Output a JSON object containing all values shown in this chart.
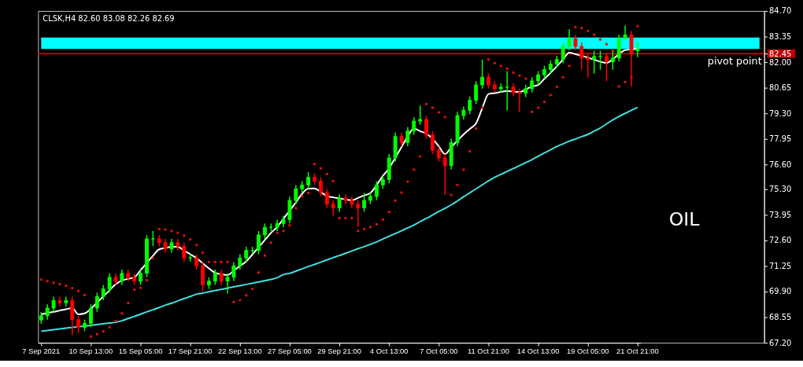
{
  "chart_data": {
    "type": "candlestick",
    "title": "CLSK,H4  82.60 83.08 82.26 82.69",
    "annotations": [
      "OIL"
    ],
    "categories": [
      "7 Sep 2021",
      null,
      null,
      null,
      null,
      null,
      null,
      null,
      "10 Sep 13:00",
      null,
      null,
      null,
      null,
      null,
      null,
      null,
      "15 Sep 05:00",
      null,
      null,
      null,
      null,
      null,
      null,
      null,
      "17 Sep 21:00",
      null,
      null,
      null,
      null,
      null,
      null,
      null,
      "22 Sep 13:00",
      null,
      null,
      null,
      null,
      null,
      null,
      null,
      "27 Sep 05:00",
      null,
      null,
      null,
      null,
      null,
      null,
      null,
      "29 Sep 21:00",
      null,
      null,
      null,
      null,
      null,
      null,
      null,
      "4 Oct 13:00",
      null,
      null,
      null,
      null,
      null,
      null,
      null,
      "7 Oct 05:00",
      null,
      null,
      null,
      null,
      null,
      null,
      null,
      "11 Oct 21:00",
      null,
      null,
      null,
      null,
      null,
      null,
      null,
      "14 Oct 13:00",
      null,
      null,
      null,
      null,
      null,
      null,
      null,
      "19 Oct 05:00",
      null,
      null,
      null,
      null,
      null,
      null,
      null,
      "21 Oct 21:00"
    ],
    "ylim": [
      67.2,
      84.7
    ],
    "yticks": [
      {
        "value": 67.2,
        "label": "67.20"
      },
      {
        "value": 68.55,
        "label": "68.55"
      },
      {
        "value": 69.9,
        "label": "69.90"
      },
      {
        "value": 71.25,
        "label": "71.25"
      },
      {
        "value": 72.6,
        "label": "72.60"
      },
      {
        "value": 73.95,
        "label": "73.95"
      },
      {
        "value": 75.3,
        "label": "75.30"
      },
      {
        "value": 76.6,
        "label": "76.60"
      },
      {
        "value": 77.95,
        "label": "77.95"
      },
      {
        "value": 79.3,
        "label": "79.30"
      },
      {
        "value": 80.65,
        "label": "80.65"
      },
      {
        "value": 82.0,
        "label": "82.00"
      },
      {
        "value": 82.45,
        "label": "82.45"
      },
      {
        "value": 83.35,
        "label": "83.35"
      },
      {
        "value": 84.7,
        "label": "84.70"
      }
    ],
    "grid": false,
    "bands": [
      {
        "axis": "y",
        "from": 82.7,
        "to": 83.3,
        "color": "#00ffff"
      }
    ],
    "ref_lines": [
      {
        "axis": "y",
        "value": 82.45,
        "label": "pivot point",
        "color": "#c00000"
      }
    ],
    "ohlc": [
      [
        68.4,
        68.82,
        68.2,
        68.62
      ],
      [
        68.62,
        69.23,
        68.42,
        69.03
      ],
      [
        69.03,
        69.63,
        68.83,
        69.43
      ],
      [
        69.43,
        69.63,
        69.11,
        69.31
      ],
      [
        69.31,
        69.63,
        69.11,
        69.43
      ],
      [
        69.43,
        69.63,
        67.6,
        68.42
      ],
      [
        68.42,
        68.62,
        67.7,
        68.01
      ],
      [
        68.01,
        68.42,
        67.81,
        68.22
      ],
      [
        68.22,
        69.23,
        68.02,
        69.03
      ],
      [
        69.03,
        69.84,
        68.83,
        69.64
      ],
      [
        69.64,
        70.24,
        69.44,
        70.04
      ],
      [
        70.04,
        70.85,
        69.84,
        70.65
      ],
      [
        70.65,
        70.85,
        70.25,
        70.45
      ],
      [
        70.45,
        71.06,
        70.25,
        70.86
      ],
      [
        70.86,
        71.06,
        70.45,
        70.65
      ],
      [
        70.65,
        70.85,
        70.25,
        70.45
      ],
      [
        70.45,
        71.06,
        70.25,
        70.86
      ],
      [
        70.86,
        72.88,
        70.66,
        72.68
      ],
      [
        72.68,
        73.1,
        72.3,
        72.68
      ],
      [
        72.68,
        72.88,
        72.28,
        72.48
      ],
      [
        72.48,
        72.68,
        71.95,
        72.15
      ],
      [
        72.15,
        72.68,
        71.95,
        72.48
      ],
      [
        72.48,
        72.68,
        72.08,
        72.28
      ],
      [
        72.28,
        72.48,
        71.47,
        71.67
      ],
      [
        71.67,
        71.87,
        71.47,
        71.67
      ],
      [
        71.67,
        71.87,
        71.06,
        71.26
      ],
      [
        71.26,
        71.46,
        69.9,
        70.25
      ],
      [
        70.25,
        70.65,
        70.05,
        70.45
      ],
      [
        70.45,
        71.06,
        70.25,
        70.86
      ],
      [
        70.86,
        71.06,
        70.25,
        70.45
      ],
      [
        70.45,
        70.85,
        69.8,
        70.65
      ],
      [
        70.65,
        71.46,
        70.45,
        71.26
      ],
      [
        71.26,
        71.87,
        71.06,
        71.67
      ],
      [
        71.67,
        72.27,
        71.47,
        72.07
      ],
      [
        72.07,
        72.27,
        71.87,
        72.07
      ],
      [
        72.07,
        73.09,
        71.87,
        72.89
      ],
      [
        72.89,
        73.49,
        72.69,
        73.29
      ],
      [
        73.29,
        73.49,
        73.09,
        73.29
      ],
      [
        73.29,
        73.69,
        73.09,
        73.49
      ],
      [
        73.49,
        73.9,
        73.29,
        73.7
      ],
      [
        73.7,
        74.91,
        73.5,
        74.71
      ],
      [
        74.71,
        75.52,
        74.51,
        75.32
      ],
      [
        75.32,
        75.72,
        75.12,
        75.52
      ],
      [
        75.52,
        76.2,
        75.32,
        75.93
      ],
      [
        75.93,
        76.13,
        75.53,
        75.73
      ],
      [
        75.73,
        75.93,
        74.92,
        75.12
      ],
      [
        75.12,
        75.32,
        74.31,
        74.51
      ],
      [
        74.51,
        74.71,
        73.9,
        74.31
      ],
      [
        74.31,
        75.03,
        74.11,
        74.83
      ],
      [
        74.83,
        75.03,
        74.51,
        74.71
      ],
      [
        74.71,
        74.91,
        74.31,
        74.51
      ],
      [
        74.51,
        74.71,
        73.3,
        74.31
      ],
      [
        74.31,
        75.1,
        74.11,
        74.71
      ],
      [
        74.71,
        75.12,
        74.51,
        74.92
      ],
      [
        74.92,
        75.72,
        74.72,
        75.52
      ],
      [
        75.52,
        76.01,
        75.32,
        75.81
      ],
      [
        75.81,
        77.15,
        75.61,
        76.95
      ],
      [
        76.95,
        78.28,
        76.75,
        78.08
      ],
      [
        78.08,
        78.28,
        77.56,
        77.76
      ],
      [
        77.76,
        78.57,
        77.56,
        78.37
      ],
      [
        78.37,
        79.09,
        78.17,
        78.89
      ],
      [
        78.89,
        79.71,
        78.69,
        78.98
      ],
      [
        78.98,
        79.18,
        77.96,
        78.16
      ],
      [
        78.16,
        78.36,
        77.15,
        77.35
      ],
      [
        77.35,
        77.55,
        76.75,
        76.95
      ],
      [
        76.95,
        77.15,
        74.99,
        76.54
      ],
      [
        76.54,
        77.96,
        76.34,
        77.76
      ],
      [
        77.76,
        79.38,
        77.56,
        79.18
      ],
      [
        79.18,
        79.66,
        78.98,
        79.46
      ],
      [
        79.46,
        80.19,
        79.26,
        79.99
      ],
      [
        79.99,
        81.0,
        79.79,
        80.8
      ],
      [
        80.8,
        82.14,
        80.6,
        81.21
      ],
      [
        81.21,
        81.41,
        80.6,
        80.8
      ],
      [
        80.8,
        81.0,
        80.4,
        80.6
      ],
      [
        80.6,
        80.88,
        80.4,
        80.68
      ],
      [
        80.68,
        81.53,
        79.46,
        80.68
      ],
      [
        80.68,
        80.88,
        80.2,
        80.4
      ],
      [
        80.4,
        80.6,
        79.38,
        80.36
      ],
      [
        80.36,
        80.8,
        80.16,
        80.6
      ],
      [
        80.6,
        81.21,
        80.4,
        81.01
      ],
      [
        81.01,
        81.53,
        80.81,
        81.33
      ],
      [
        81.33,
        81.81,
        81.13,
        81.61
      ],
      [
        81.61,
        82.1,
        81.41,
        81.9
      ],
      [
        81.9,
        82.34,
        81.7,
        82.14
      ],
      [
        82.14,
        83.03,
        81.94,
        82.83
      ],
      [
        82.83,
        83.73,
        82.63,
        83.24
      ],
      [
        83.24,
        83.44,
        82.63,
        82.83
      ],
      [
        82.83,
        83.03,
        81.6,
        82.22
      ],
      [
        82.22,
        82.42,
        81.2,
        82.14
      ],
      [
        82.14,
        82.6,
        81.4,
        82.3
      ],
      [
        82.3,
        82.6,
        81.6,
        82.3
      ],
      [
        82.3,
        82.5,
        81.0,
        82.02
      ],
      [
        82.02,
        82.6,
        81.6,
        82.22
      ],
      [
        82.22,
        83.44,
        82.02,
        83.24
      ],
      [
        83.24,
        83.93,
        83.24,
        83.44
      ],
      [
        83.44,
        83.64,
        80.72,
        82.43
      ],
      [
        82.6,
        83.08,
        82.26,
        82.69
      ]
    ],
    "colors": [
      "#00ff00",
      "#00ff00",
      "#00ff00",
      "#ff0000",
      "#00ff00",
      "#ff0000",
      "#ff0000",
      "#00ff00",
      "#00ff00",
      "#00ff00",
      "#00ff00",
      "#00ff00",
      "#ff0000",
      "#00ff00",
      "#ff0000",
      "#ff0000",
      "#00ff00",
      "#00ff00",
      "#00ff00",
      "#ff0000",
      "#ff0000",
      "#00ff00",
      "#ff0000",
      "#ff0000",
      "#00ff00",
      "#ff0000",
      "#ff0000",
      "#00ff00",
      "#00ff00",
      "#ff0000",
      "#00ff00",
      "#00ff00",
      "#00ff00",
      "#00ff00",
      "#00ff00",
      "#00ff00",
      "#00ff00",
      "#00ff00",
      "#00ff00",
      "#00ff00",
      "#00ff00",
      "#00ff00",
      "#00ff00",
      "#00ff00",
      "#ff0000",
      "#ff0000",
      "#ff0000",
      "#ff0000",
      "#00ff00",
      "#ff0000",
      "#ff0000",
      "#ff0000",
      "#00ff00",
      "#00ff00",
      "#00ff00",
      "#00ff00",
      "#00ff00",
      "#00ff00",
      "#ff0000",
      "#00ff00",
      "#00ff00",
      "#00ff00",
      "#ff0000",
      "#ff0000",
      "#ff0000",
      "#ff0000",
      "#00ff00",
      "#00ff00",
      "#00ff00",
      "#00ff00",
      "#00ff00",
      "#00ff00",
      "#ff0000",
      "#ff0000",
      "#00ff00",
      "#00ff00",
      "#ff0000",
      "#ff0000",
      "#00ff00",
      "#00ff00",
      "#00ff00",
      "#00ff00",
      "#00ff00",
      "#00ff00",
      "#00ff00",
      "#00ff00",
      "#ff0000",
      "#ff0000",
      "#ff0000",
      "#00ff00",
      "#00ff00",
      "#ff0000",
      "#00ff00",
      "#00ff00",
      "#00ff00",
      "#ff0000",
      "#00ff00"
    ],
    "series": [
      {
        "type": "line",
        "color": "#ffffff",
        "values": [
          68.7,
          68.77,
          68.83,
          68.9,
          68.97,
          69.03,
          68.7,
          68.75,
          68.99,
          69.32,
          69.64,
          69.97,
          70.29,
          70.49,
          70.57,
          70.65,
          71.03,
          71.41,
          71.79,
          72.13,
          72.2,
          72.26,
          72.26,
          72.06,
          71.87,
          71.67,
          71.39,
          71.12,
          70.89,
          70.81,
          70.77,
          71.01,
          71.25,
          71.49,
          71.86,
          72.24,
          72.62,
          73.0,
          73.31,
          73.74,
          74.17,
          74.6,
          75.06,
          75.33,
          75.34,
          75.15,
          74.94,
          74.87,
          74.81,
          74.76,
          74.71,
          74.84,
          74.97,
          75.1,
          75.52,
          76.0,
          76.4,
          76.96,
          77.52,
          78.08,
          78.5,
          78.36,
          78.23,
          77.96,
          77.56,
          77.15,
          77.51,
          77.86,
          78.19,
          78.48,
          78.77,
          79.57,
          80.32,
          80.37,
          80.43,
          80.48,
          80.45,
          80.42,
          80.56,
          80.72,
          80.8,
          81.12,
          81.44,
          81.78,
          82.14,
          82.5,
          82.42,
          82.34,
          82.24,
          82.13,
          82.02,
          81.96,
          82.15,
          82.43,
          82.64,
          82.67,
          82.7
        ]
      },
      {
        "type": "line",
        "color": "#40e0e0",
        "values": [
          67.81,
          67.85,
          67.89,
          67.93,
          67.97,
          68.01,
          68.05,
          68.08,
          68.12,
          68.16,
          68.2,
          68.24,
          68.28,
          68.36,
          68.48,
          68.59,
          68.71,
          68.83,
          68.94,
          69.06,
          69.18,
          69.29,
          69.41,
          69.53,
          69.64,
          69.76,
          69.82,
          69.89,
          69.95,
          70.02,
          70.08,
          70.15,
          70.21,
          70.28,
          70.34,
          70.41,
          70.47,
          70.54,
          70.63,
          70.8,
          70.86,
          70.98,
          71.1,
          71.22,
          71.33,
          71.45,
          71.57,
          71.69,
          71.8,
          71.92,
          72.04,
          72.16,
          72.27,
          72.39,
          72.52,
          72.67,
          72.82,
          72.96,
          73.11,
          73.26,
          73.41,
          73.59,
          73.76,
          73.94,
          74.12,
          74.29,
          74.47,
          74.68,
          74.9,
          75.11,
          75.32,
          75.53,
          75.74,
          75.93,
          76.08,
          76.24,
          76.39,
          76.55,
          76.7,
          76.86,
          77.04,
          77.21,
          77.38,
          77.55,
          77.69,
          77.83,
          77.95,
          78.07,
          78.19,
          78.36,
          78.53,
          78.74,
          78.95,
          79.14,
          79.3,
          79.46,
          79.62
        ]
      },
      {
        "type": "scatter",
        "color": "#e01010",
        "marker": "square",
        "values": [
          70.53,
          70.45,
          70.37,
          70.29,
          70.2,
          70.08,
          69.93,
          69.72,
          67.53,
          67.65,
          67.8,
          68.02,
          68.35,
          68.75,
          69.3,
          70.0,
          70.1,
          70.5,
          71.67,
          73.2,
          73.17,
          73.1,
          73.0,
          72.85,
          72.65,
          72.35,
          71.95,
          71.46,
          71.46,
          71.46,
          71.46,
          69.35,
          69.45,
          69.7,
          70.04,
          70.9,
          71.8,
          72.48,
          73.0,
          73.1,
          73.4,
          74.3,
          74.92,
          75.1,
          76.62,
          76.4,
          76.1,
          75.73,
          73.78,
          73.78,
          73.78,
          73.1,
          73.2,
          73.3,
          73.45,
          73.7,
          74.1,
          74.7,
          75.12,
          75.7,
          76.33,
          77.03,
          79.79,
          79.6,
          79.35,
          79.1,
          75.0,
          75.52,
          76.33,
          77.3,
          78.5,
          79.6,
          82.14,
          81.95,
          81.8,
          81.65,
          81.45,
          81.3,
          81.13,
          79.38,
          79.6,
          79.9,
          80.27,
          80.7,
          81.2,
          81.8,
          83.85,
          83.8,
          83.65,
          83.45,
          83.2,
          82.95,
          82.63,
          80.72,
          80.95,
          81.2,
          83.9
        ]
      }
    ]
  }
}
